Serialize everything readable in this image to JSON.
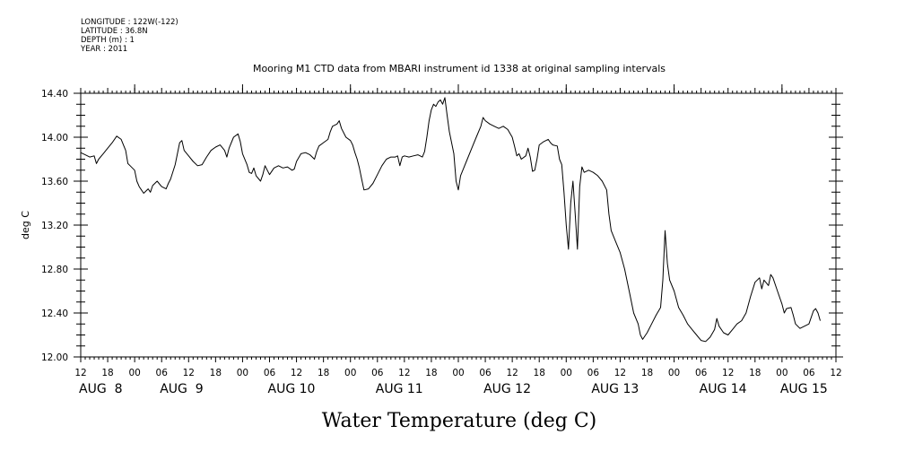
{
  "meta": {
    "longitude": "LONGITUDE : 122W(-122)",
    "latitude": "LATITUDE : 36.8N",
    "depth": "DEPTH (m) : 1",
    "year": "YEAR : 2011"
  },
  "chart_data": {
    "type": "line",
    "title": "Mooring M1 CTD data from MBARI instrument id 1338 at original sampling intervals",
    "xlabel": "",
    "ylabel": "deg C",
    "bottom_title": "Water Temperature (deg C)",
    "xlim": [
      0,
      168
    ],
    "ylim": [
      12.0,
      14.4
    ],
    "grid": false,
    "y_ticks": [
      "12.00",
      "12.40",
      "12.80",
      "13.20",
      "13.60",
      "14.00",
      "14.40"
    ],
    "x_hour_ticks": [
      "12",
      "18",
      "00",
      "06",
      "12",
      "18",
      "00",
      "06",
      "12",
      "18",
      "00",
      "06",
      "12",
      "18",
      "00",
      "06",
      "12",
      "18",
      "00",
      "06",
      "12",
      "18",
      "00",
      "06",
      "12",
      "18",
      "00",
      "06",
      "12"
    ],
    "x_day_labels": [
      {
        "label": "AUG  8",
        "x": 0
      },
      {
        "label": "AUG  9",
        "x": 18
      },
      {
        "label": "AUG 10",
        "x": 42
      },
      {
        "label": "AUG 11",
        "x": 66
      },
      {
        "label": "AUG 12",
        "x": 90
      },
      {
        "label": "AUG 13",
        "x": 114
      },
      {
        "label": "AUG 14",
        "x": 138
      },
      {
        "label": "AUG 15",
        "x": 156
      }
    ],
    "x_unit": "hours since AUG 8 12:00",
    "series": [
      {
        "color": "#000000",
        "points": [
          [
            0,
            13.86
          ],
          [
            1,
            13.84
          ],
          [
            2,
            13.82
          ],
          [
            3,
            13.83
          ],
          [
            3.5,
            13.76
          ],
          [
            4,
            13.8
          ],
          [
            5,
            13.85
          ],
          [
            6,
            13.9
          ],
          [
            7,
            13.95
          ],
          [
            8,
            14.01
          ],
          [
            9,
            13.98
          ],
          [
            10,
            13.88
          ],
          [
            10.5,
            13.76
          ],
          [
            11,
            13.74
          ],
          [
            12,
            13.7
          ],
          [
            12.5,
            13.6
          ],
          [
            13,
            13.55
          ],
          [
            13.5,
            13.52
          ],
          [
            14,
            13.49
          ],
          [
            15,
            13.53
          ],
          [
            15.5,
            13.5
          ],
          [
            16,
            13.56
          ],
          [
            17,
            13.6
          ],
          [
            18,
            13.55
          ],
          [
            19,
            13.53
          ],
          [
            19.5,
            13.58
          ],
          [
            20,
            13.62
          ],
          [
            21,
            13.75
          ],
          [
            22,
            13.95
          ],
          [
            22.5,
            13.97
          ],
          [
            23,
            13.88
          ],
          [
            24,
            13.83
          ],
          [
            25,
            13.78
          ],
          [
            26,
            13.74
          ],
          [
            27,
            13.75
          ],
          [
            28,
            13.82
          ],
          [
            29,
            13.88
          ],
          [
            30,
            13.91
          ],
          [
            31,
            13.93
          ],
          [
            32,
            13.88
          ],
          [
            32.5,
            13.82
          ],
          [
            33,
            13.9
          ],
          [
            34,
            14.0
          ],
          [
            35,
            14.03
          ],
          [
            35.5,
            13.96
          ],
          [
            36,
            13.85
          ],
          [
            37,
            13.75
          ],
          [
            37.5,
            13.68
          ],
          [
            38,
            13.67
          ],
          [
            38.5,
            13.72
          ],
          [
            39,
            13.65
          ],
          [
            40,
            13.6
          ],
          [
            40.5,
            13.66
          ],
          [
            41,
            13.74
          ],
          [
            41.5,
            13.7
          ],
          [
            42,
            13.66
          ],
          [
            43,
            13.72
          ],
          [
            44,
            13.74
          ],
          [
            45,
            13.72
          ],
          [
            46,
            13.73
          ],
          [
            47,
            13.7
          ],
          [
            47.5,
            13.71
          ],
          [
            48,
            13.78
          ],
          [
            49,
            13.85
          ],
          [
            50,
            13.86
          ],
          [
            51,
            13.84
          ],
          [
            52,
            13.8
          ],
          [
            52.5,
            13.87
          ],
          [
            53,
            13.92
          ],
          [
            54,
            13.95
          ],
          [
            55,
            13.98
          ],
          [
            55.5,
            14.05
          ],
          [
            56,
            14.1
          ],
          [
            57,
            14.12
          ],
          [
            57.5,
            14.15
          ],
          [
            58,
            14.08
          ],
          [
            59,
            14.0
          ],
          [
            60,
            13.97
          ],
          [
            60.5,
            13.93
          ],
          [
            61,
            13.86
          ],
          [
            61.5,
            13.8
          ],
          [
            62,
            13.72
          ],
          [
            62.5,
            13.62
          ],
          [
            63,
            13.52
          ],
          [
            64,
            13.53
          ],
          [
            65,
            13.58
          ],
          [
            66,
            13.66
          ],
          [
            67,
            13.74
          ],
          [
            68,
            13.8
          ],
          [
            69,
            13.82
          ],
          [
            70,
            13.82
          ],
          [
            70.5,
            13.83
          ],
          [
            71,
            13.74
          ],
          [
            71.5,
            13.82
          ],
          [
            72,
            13.83
          ],
          [
            73,
            13.82
          ],
          [
            74,
            13.83
          ],
          [
            75,
            13.84
          ],
          [
            76,
            13.82
          ],
          [
            76.5,
            13.87
          ],
          [
            77,
            14.0
          ],
          [
            77.5,
            14.15
          ],
          [
            78,
            14.25
          ],
          [
            78.5,
            14.3
          ],
          [
            79,
            14.28
          ],
          [
            79.5,
            14.32
          ],
          [
            80,
            14.34
          ],
          [
            80.5,
            14.3
          ],
          [
            81,
            14.36
          ],
          [
            81.5,
            14.2
          ],
          [
            82,
            14.05
          ],
          [
            83,
            13.85
          ],
          [
            83.5,
            13.6
          ],
          [
            84,
            13.52
          ],
          [
            84.5,
            13.65
          ],
          [
            85,
            13.7
          ],
          [
            86,
            13.8
          ],
          [
            87,
            13.9
          ],
          [
            88,
            14.0
          ],
          [
            89,
            14.1
          ],
          [
            89.5,
            14.18
          ],
          [
            90,
            14.15
          ],
          [
            91,
            14.12
          ],
          [
            92,
            14.1
          ],
          [
            93,
            14.08
          ],
          [
            94,
            14.1
          ],
          [
            95,
            14.07
          ],
          [
            96,
            14.0
          ],
          [
            96.5,
            13.92
          ],
          [
            97,
            13.83
          ],
          [
            97.5,
            13.85
          ],
          [
            98,
            13.8
          ],
          [
            99,
            13.83
          ],
          [
            99.5,
            13.9
          ],
          [
            100,
            13.82
          ],
          [
            100.5,
            13.69
          ],
          [
            101,
            13.7
          ],
          [
            101.5,
            13.8
          ],
          [
            102,
            13.93
          ],
          [
            103,
            13.96
          ],
          [
            104,
            13.98
          ],
          [
            104.5,
            13.95
          ],
          [
            105,
            13.93
          ],
          [
            106,
            13.92
          ],
          [
            106.5,
            13.8
          ],
          [
            107,
            13.75
          ],
          [
            107.5,
            13.5
          ],
          [
            108,
            13.2
          ],
          [
            108.5,
            12.98
          ],
          [
            109,
            13.4
          ],
          [
            109.5,
            13.6
          ],
          [
            110,
            13.3
          ],
          [
            110.5,
            12.98
          ],
          [
            111,
            13.55
          ],
          [
            111.5,
            13.73
          ],
          [
            112,
            13.68
          ],
          [
            113,
            13.7
          ],
          [
            114,
            13.68
          ],
          [
            115,
            13.65
          ],
          [
            116,
            13.6
          ],
          [
            117,
            13.52
          ],
          [
            117.5,
            13.3
          ],
          [
            118,
            13.15
          ],
          [
            119,
            13.05
          ],
          [
            120,
            12.95
          ],
          [
            121,
            12.8
          ],
          [
            122,
            12.6
          ],
          [
            123,
            12.4
          ],
          [
            124,
            12.3
          ],
          [
            124.5,
            12.2
          ],
          [
            125,
            12.16
          ],
          [
            126,
            12.22
          ],
          [
            127,
            12.3
          ],
          [
            128,
            12.38
          ],
          [
            129,
            12.45
          ],
          [
            129.5,
            12.7
          ],
          [
            130,
            13.15
          ],
          [
            130.5,
            12.85
          ],
          [
            131,
            12.7
          ],
          [
            132,
            12.6
          ],
          [
            133,
            12.45
          ],
          [
            134,
            12.38
          ],
          [
            135,
            12.3
          ],
          [
            136,
            12.25
          ],
          [
            137,
            12.2
          ],
          [
            138,
            12.15
          ],
          [
            139,
            12.14
          ],
          [
            140,
            12.18
          ],
          [
            141,
            12.25
          ],
          [
            141.5,
            12.35
          ],
          [
            142,
            12.28
          ],
          [
            143,
            12.22
          ],
          [
            144,
            12.2
          ],
          [
            145,
            12.25
          ],
          [
            146,
            12.3
          ],
          [
            147,
            12.33
          ],
          [
            148,
            12.4
          ],
          [
            149,
            12.55
          ],
          [
            150,
            12.68
          ],
          [
            151,
            12.72
          ],
          [
            151.5,
            12.62
          ],
          [
            152,
            12.7
          ],
          [
            153,
            12.65
          ],
          [
            153.5,
            12.75
          ],
          [
            154,
            12.72
          ],
          [
            155,
            12.6
          ],
          [
            156,
            12.48
          ],
          [
            156.5,
            12.4
          ],
          [
            157,
            12.44
          ],
          [
            158,
            12.45
          ],
          [
            158.5,
            12.38
          ],
          [
            159,
            12.3
          ],
          [
            160,
            12.26
          ],
          [
            161,
            12.28
          ],
          [
            162,
            12.3
          ],
          [
            163,
            12.42
          ],
          [
            163.5,
            12.44
          ],
          [
            164,
            12.4
          ],
          [
            164.5,
            12.33
          ]
        ]
      }
    ]
  }
}
